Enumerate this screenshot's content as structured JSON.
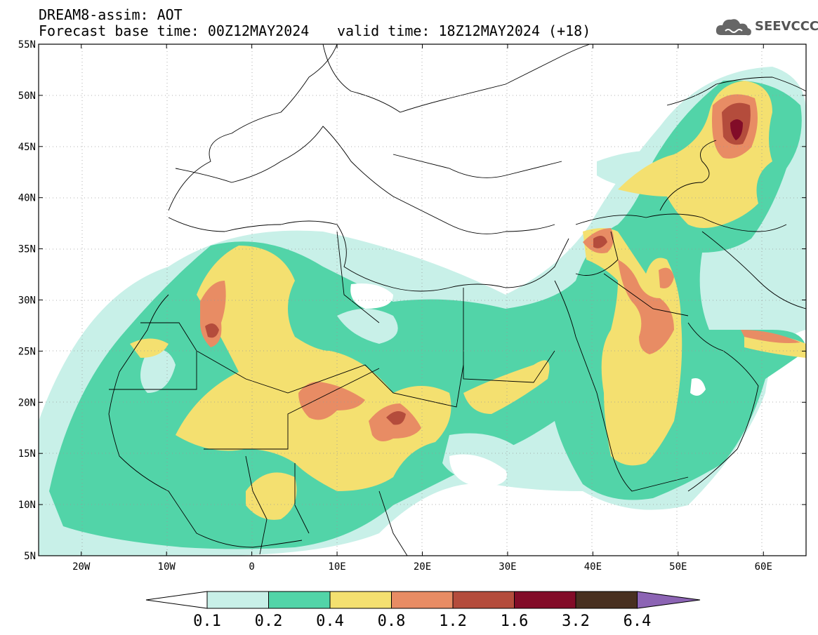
{
  "header": {
    "model": "DREAM8-assim: AOT",
    "base_time": "Forecast base time: 00Z12MAY2024",
    "valid_time": "valid time: 18Z12MAY2024 (+18)"
  },
  "logo": {
    "text": "SEEVCCC",
    "icon": "cloud-icon"
  },
  "axes": {
    "lon_labels": [
      "20W",
      "10W",
      "0",
      "10E",
      "20E",
      "30E",
      "40E",
      "50E",
      "60E"
    ],
    "lat_labels": [
      "55N",
      "50N",
      "45N",
      "40N",
      "35N",
      "30N",
      "25N",
      "20N",
      "15N",
      "10N",
      "5N"
    ],
    "lon_range": [
      -25,
      65
    ],
    "lat_range": [
      5,
      55
    ]
  },
  "colorbar": {
    "labels": [
      "0.1",
      "0.2",
      "0.4",
      "0.8",
      "1.2",
      "1.6",
      "3.2",
      "6.4"
    ],
    "colors": [
      "#ffffff",
      "#c8f0e8",
      "#52d4a8",
      "#f4e070",
      "#e88c64",
      "#b44c3c",
      "#820c28",
      "#483020",
      "#8c64b4"
    ]
  },
  "field_colors": {
    "lt02": "#c8f0e8",
    "lt04": "#52d4a8",
    "lt08": "#f4e070",
    "lt12": "#e88c64",
    "lt16": "#b44c3c",
    "lt32": "#820c28"
  }
}
